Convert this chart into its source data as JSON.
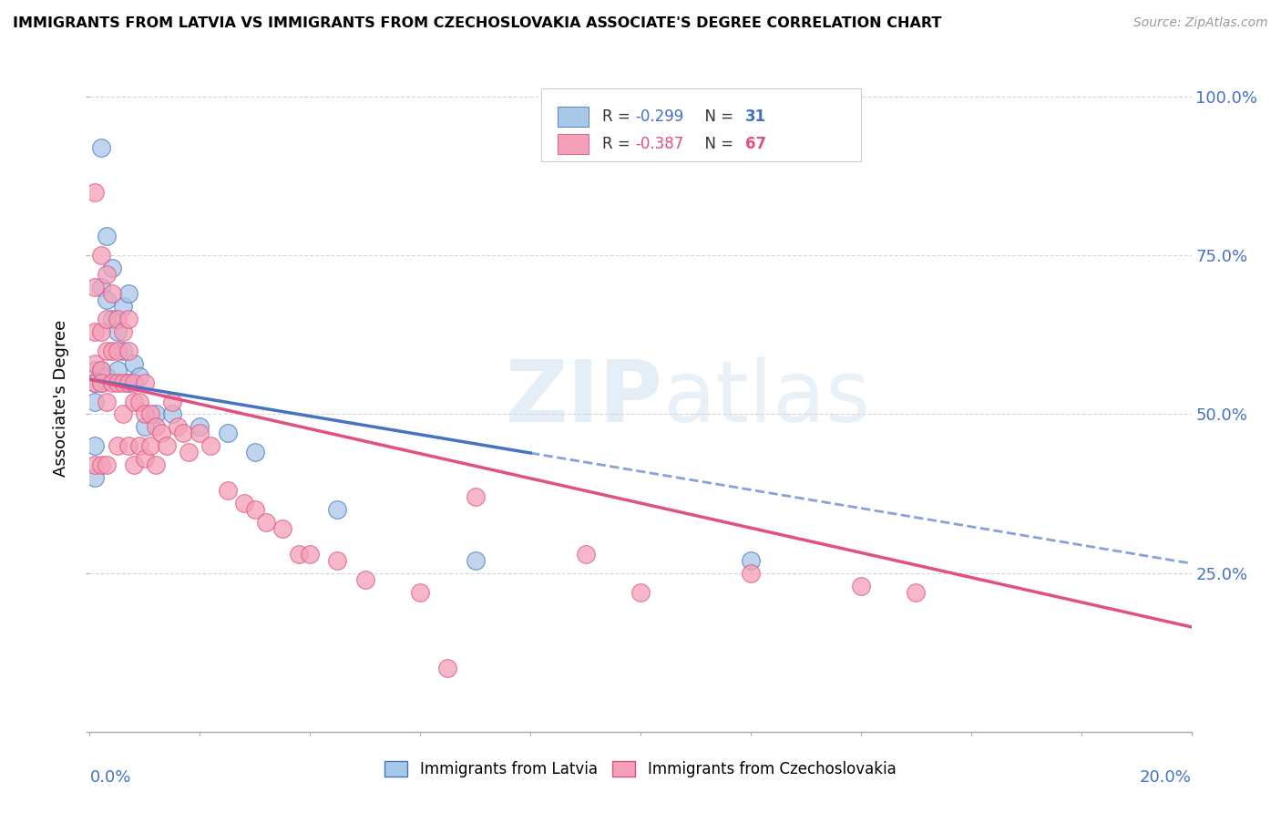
{
  "title": "IMMIGRANTS FROM LATVIA VS IMMIGRANTS FROM CZECHOSLOVAKIA ASSOCIATE'S DEGREE CORRELATION CHART",
  "source": "Source: ZipAtlas.com",
  "ylabel": "Associate's Degree",
  "watermark_zip": "ZIP",
  "watermark_atlas": "atlas",
  "latvia_color": "#a8c8e8",
  "latvia_line_color": "#4472c4",
  "czechoslovakia_color": "#f4a0b8",
  "czechoslovakia_line_color": "#e05080",
  "xlim": [
    0.0,
    0.2
  ],
  "ylim": [
    0.0,
    1.05
  ],
  "figsize": [
    14.06,
    8.92
  ],
  "dpi": 100,
  "lv_intercept": 0.555,
  "lv_slope": -1.45,
  "cz_intercept": 0.555,
  "cz_slope": -1.95,
  "lv_x": [
    0.001,
    0.001,
    0.001,
    0.001,
    0.001,
    0.002,
    0.002,
    0.002,
    0.002,
    0.003,
    0.003,
    0.003,
    0.004,
    0.004,
    0.005,
    0.005,
    0.006,
    0.006,
    0.007,
    0.007,
    0.008,
    0.009,
    0.01,
    0.012,
    0.015,
    0.02,
    0.025,
    0.03,
    0.045,
    0.07,
    0.12
  ],
  "lv_y": [
    0.57,
    0.55,
    0.52,
    0.45,
    0.4,
    0.92,
    0.7,
    0.57,
    0.55,
    0.78,
    0.68,
    0.56,
    0.73,
    0.65,
    0.63,
    0.57,
    0.67,
    0.6,
    0.69,
    0.55,
    0.58,
    0.56,
    0.48,
    0.5,
    0.5,
    0.48,
    0.47,
    0.44,
    0.35,
    0.27,
    0.27
  ],
  "cz_x": [
    0.001,
    0.001,
    0.001,
    0.001,
    0.001,
    0.001,
    0.002,
    0.002,
    0.002,
    0.002,
    0.002,
    0.003,
    0.003,
    0.003,
    0.003,
    0.003,
    0.004,
    0.004,
    0.004,
    0.005,
    0.005,
    0.005,
    0.005,
    0.006,
    0.006,
    0.006,
    0.007,
    0.007,
    0.007,
    0.007,
    0.008,
    0.008,
    0.008,
    0.009,
    0.009,
    0.01,
    0.01,
    0.01,
    0.011,
    0.011,
    0.012,
    0.012,
    0.013,
    0.014,
    0.015,
    0.016,
    0.017,
    0.018,
    0.02,
    0.022,
    0.025,
    0.028,
    0.03,
    0.032,
    0.035,
    0.038,
    0.04,
    0.045,
    0.05,
    0.06,
    0.065,
    0.07,
    0.09,
    0.1,
    0.12,
    0.14,
    0.15
  ],
  "cz_y": [
    0.85,
    0.7,
    0.63,
    0.58,
    0.55,
    0.42,
    0.75,
    0.63,
    0.57,
    0.55,
    0.42,
    0.72,
    0.65,
    0.6,
    0.52,
    0.42,
    0.69,
    0.6,
    0.55,
    0.65,
    0.6,
    0.55,
    0.45,
    0.63,
    0.55,
    0.5,
    0.65,
    0.6,
    0.55,
    0.45,
    0.55,
    0.52,
    0.42,
    0.52,
    0.45,
    0.55,
    0.5,
    0.43,
    0.5,
    0.45,
    0.48,
    0.42,
    0.47,
    0.45,
    0.52,
    0.48,
    0.47,
    0.44,
    0.47,
    0.45,
    0.38,
    0.36,
    0.35,
    0.33,
    0.32,
    0.28,
    0.28,
    0.27,
    0.24,
    0.22,
    0.1,
    0.37,
    0.28,
    0.22,
    0.25,
    0.23,
    0.22
  ]
}
